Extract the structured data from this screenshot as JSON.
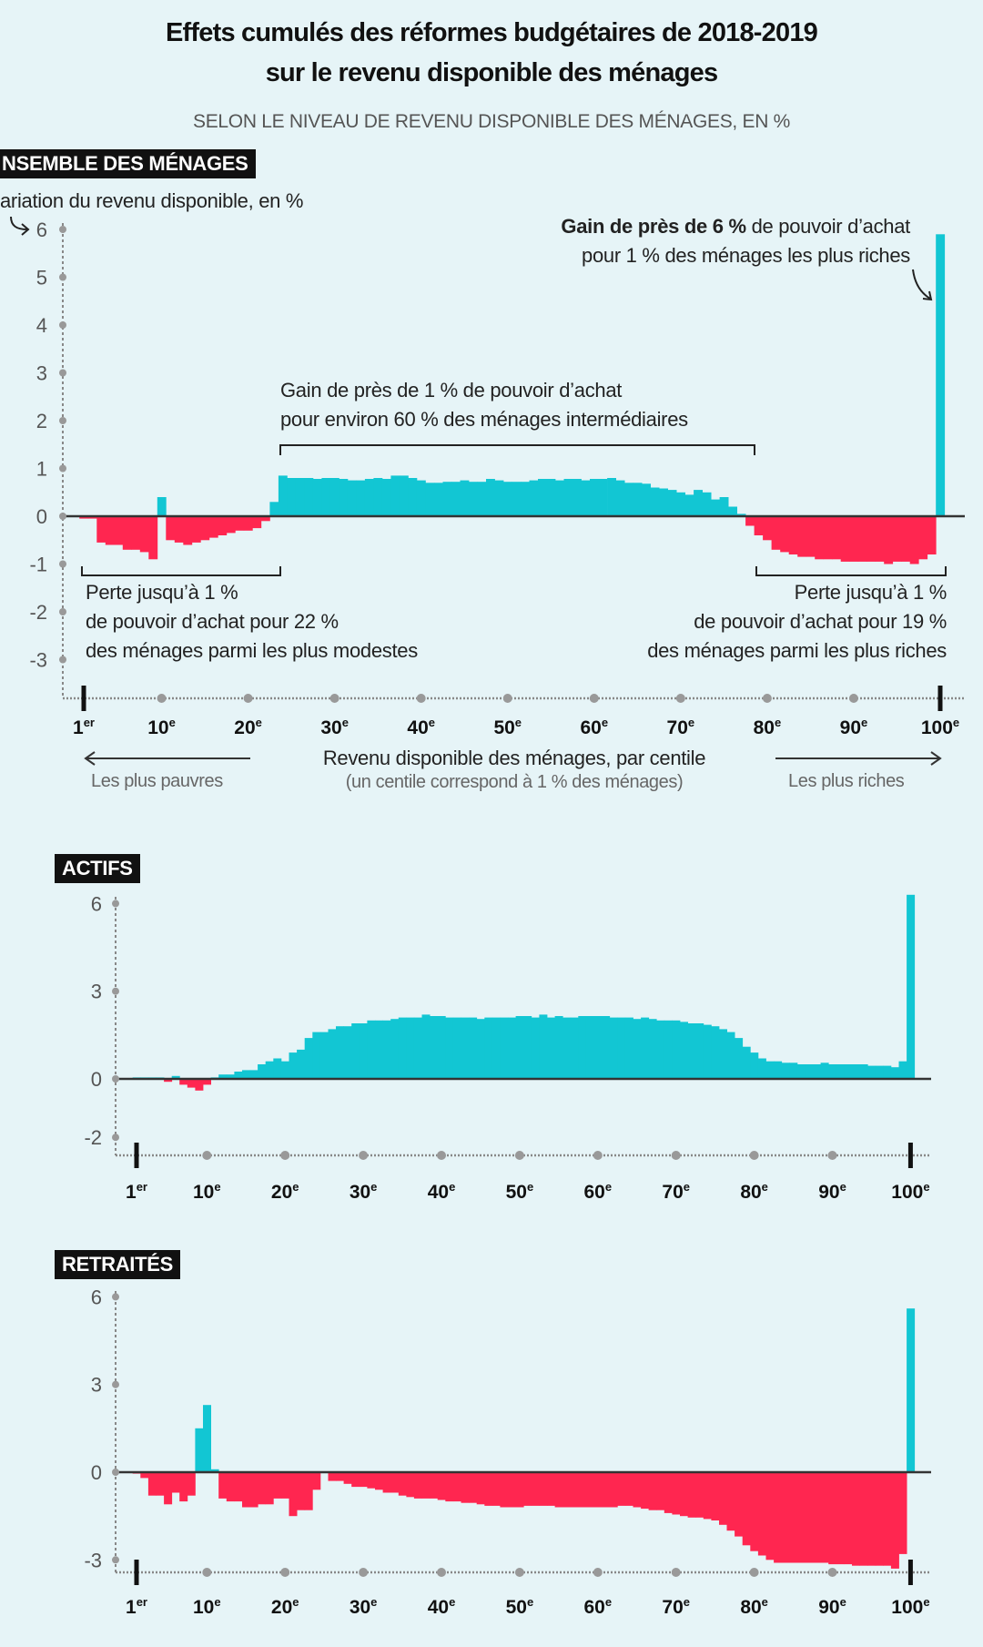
{
  "header": {
    "title_line1": "Effets cumulés des réformes budgétaires de 2018-2019",
    "title_line2": "sur le revenu disponible des ménages",
    "subtitle": "SELON LE NIVEAU DE REVENU DISPONIBLE DES MÉNAGES, EN %"
  },
  "colors": {
    "background": "#e6f4f7",
    "gain": "#12c6d3",
    "loss": "#ff2650",
    "axis": "#888888"
  },
  "annotations": {
    "top_gain_bold": "Gain de près de 6 %",
    "top_gain_rest": " de pouvoir d’achat",
    "top_gain_line2": "pour 1 % des ménages les plus riches",
    "mid_gain_line1": "Gain de près de 1 % de pouvoir d’achat",
    "mid_gain_line2": "pour environ 60 % des ménages intermédiaires",
    "left_loss_line1": "Perte jusqu’à 1 %",
    "left_loss_line2": "de pouvoir d’achat pour 22 %",
    "left_loss_line3": "des ménages parmi les plus modestes",
    "right_loss_line1": "Perte jusqu’à 1 %",
    "right_loss_line2": "de pouvoir d’achat pour 19 %",
    "right_loss_line3": "des ménages parmi les plus riches",
    "xlabel": "Revenu disponible des ménages, par centile",
    "xlabel_note": "(un centile correspond à 1 % des ménages)",
    "poorest": "Les plus pauvres",
    "richest": "Les plus riches"
  },
  "chart_data": [
    {
      "type": "bar",
      "title": "NSEMBLE DES MÉNAGES",
      "ylabel": "ariation du revenu disponible, en %",
      "xlabel": "Revenu disponible des ménages, par centile",
      "x_ticks": [
        {
          "n": "1",
          "s": "er",
          "c": 1
        },
        {
          "n": "10",
          "s": "e",
          "c": 10
        },
        {
          "n": "20",
          "s": "e",
          "c": 20
        },
        {
          "n": "30",
          "s": "e",
          "c": 30
        },
        {
          "n": "40",
          "s": "e",
          "c": 40
        },
        {
          "n": "50",
          "s": "e",
          "c": 50
        },
        {
          "n": "60",
          "s": "e",
          "c": 60
        },
        {
          "n": "70",
          "s": "e",
          "c": 70
        },
        {
          "n": "80",
          "s": "e",
          "c": 80
        },
        {
          "n": "90",
          "s": "e",
          "c": 90
        },
        {
          "n": "100",
          "s": "e",
          "c": 100
        }
      ],
      "y_ticks": [
        6,
        5,
        4,
        3,
        2,
        1,
        0,
        -1,
        -2,
        -3
      ],
      "ylim": [
        -3.8,
        6.3
      ],
      "x": "centiles 1 to 100",
      "values": [
        -0.05,
        -0.05,
        -0.55,
        -0.6,
        -0.6,
        -0.7,
        -0.7,
        -0.75,
        -0.9,
        0.4,
        -0.5,
        -0.55,
        -0.6,
        -0.55,
        -0.5,
        -0.45,
        -0.4,
        -0.35,
        -0.3,
        -0.3,
        -0.25,
        -0.1,
        0.3,
        0.85,
        0.8,
        0.8,
        0.8,
        0.78,
        0.8,
        0.8,
        0.78,
        0.75,
        0.75,
        0.78,
        0.8,
        0.78,
        0.85,
        0.85,
        0.8,
        0.75,
        0.7,
        0.7,
        0.72,
        0.72,
        0.75,
        0.72,
        0.72,
        0.78,
        0.75,
        0.72,
        0.72,
        0.72,
        0.75,
        0.78,
        0.78,
        0.75,
        0.78,
        0.78,
        0.75,
        0.78,
        0.78,
        0.8,
        0.75,
        0.7,
        0.7,
        0.68,
        0.6,
        0.58,
        0.55,
        0.5,
        0.45,
        0.55,
        0.5,
        0.35,
        0.4,
        0.2,
        0.05,
        -0.2,
        -0.4,
        -0.5,
        -0.7,
        -0.75,
        -0.8,
        -0.85,
        -0.85,
        -0.9,
        -0.9,
        -0.9,
        -0.95,
        -0.95,
        -0.95,
        -0.95,
        -0.95,
        -1.0,
        -0.95,
        -0.95,
        -1.0,
        -0.9,
        -0.8,
        5.9
      ]
    },
    {
      "type": "bar",
      "title": "ACTIFS",
      "x_ticks": [
        {
          "n": "1",
          "s": "er",
          "c": 1
        },
        {
          "n": "10",
          "s": "e",
          "c": 10
        },
        {
          "n": "20",
          "s": "e",
          "c": 20
        },
        {
          "n": "30",
          "s": "e",
          "c": 30
        },
        {
          "n": "40",
          "s": "e",
          "c": 40
        },
        {
          "n": "50",
          "s": "e",
          "c": 50
        },
        {
          "n": "60",
          "s": "e",
          "c": 60
        },
        {
          "n": "70",
          "s": "e",
          "c": 70
        },
        {
          "n": "80",
          "s": "e",
          "c": 80
        },
        {
          "n": "90",
          "s": "e",
          "c": 90
        },
        {
          "n": "100",
          "s": "e",
          "c": 100
        }
      ],
      "y_ticks": [
        6,
        3,
        0,
        -2
      ],
      "ylim": [
        -2.5,
        6.3
      ],
      "values": [
        0.05,
        0.05,
        0.05,
        0.05,
        -0.1,
        0.1,
        -0.2,
        -0.3,
        -0.4,
        -0.2,
        0.05,
        0.15,
        0.15,
        0.25,
        0.3,
        0.3,
        0.5,
        0.6,
        0.7,
        0.6,
        0.9,
        1.0,
        1.4,
        1.6,
        1.6,
        1.7,
        1.8,
        1.8,
        1.9,
        1.9,
        2.0,
        2.0,
        2.0,
        2.05,
        2.1,
        2.1,
        2.1,
        2.2,
        2.15,
        2.15,
        2.1,
        2.1,
        2.1,
        2.1,
        2.05,
        2.1,
        2.1,
        2.1,
        2.1,
        2.15,
        2.15,
        2.1,
        2.2,
        2.1,
        2.15,
        2.1,
        2.1,
        2.15,
        2.15,
        2.15,
        2.15,
        2.1,
        2.1,
        2.1,
        2.05,
        2.1,
        2.05,
        2.0,
        2.0,
        2.0,
        1.95,
        1.9,
        1.9,
        1.85,
        1.8,
        1.7,
        1.6,
        1.4,
        1.1,
        0.9,
        0.7,
        0.6,
        0.6,
        0.55,
        0.55,
        0.5,
        0.5,
        0.5,
        0.55,
        0.5,
        0.5,
        0.5,
        0.5,
        0.5,
        0.45,
        0.45,
        0.45,
        0.4,
        0.6,
        6.3
      ]
    },
    {
      "type": "bar",
      "title": "RETRAITÉS",
      "x_ticks": [
        {
          "n": "1",
          "s": "er",
          "c": 1
        },
        {
          "n": "10",
          "s": "e",
          "c": 10
        },
        {
          "n": "20",
          "s": "e",
          "c": 20
        },
        {
          "n": "30",
          "s": "e",
          "c": 30
        },
        {
          "n": "40",
          "s": "e",
          "c": 40
        },
        {
          "n": "50",
          "s": "e",
          "c": 50
        },
        {
          "n": "60",
          "s": "e",
          "c": 60
        },
        {
          "n": "70",
          "s": "e",
          "c": 70
        },
        {
          "n": "80",
          "s": "e",
          "c": 80
        },
        {
          "n": "90",
          "s": "e",
          "c": 90
        },
        {
          "n": "100",
          "s": "e",
          "c": 100
        }
      ],
      "y_ticks": [
        6,
        3,
        0,
        -3
      ],
      "ylim": [
        -3.5,
        6.3
      ],
      "values": [
        -0.05,
        -0.2,
        -0.8,
        -0.8,
        -1.1,
        -0.7,
        -1.0,
        -0.8,
        1.5,
        2.3,
        0.1,
        -0.9,
        -1.0,
        -1.0,
        -1.2,
        -1.2,
        -1.1,
        -1.1,
        -0.9,
        -0.9,
        -1.5,
        -1.3,
        -1.3,
        -0.6,
        0.0,
        -0.3,
        -0.3,
        -0.4,
        -0.5,
        -0.5,
        -0.55,
        -0.6,
        -0.7,
        -0.7,
        -0.8,
        -0.85,
        -0.9,
        -0.9,
        -0.9,
        -0.95,
        -1.0,
        -1.0,
        -1.05,
        -1.05,
        -1.1,
        -1.15,
        -1.15,
        -1.2,
        -1.2,
        -1.2,
        -1.15,
        -1.15,
        -1.15,
        -1.15,
        -1.2,
        -1.2,
        -1.2,
        -1.2,
        -1.2,
        -1.2,
        -1.2,
        -1.2,
        -1.15,
        -1.15,
        -1.2,
        -1.25,
        -1.3,
        -1.3,
        -1.4,
        -1.45,
        -1.5,
        -1.55,
        -1.55,
        -1.6,
        -1.65,
        -1.8,
        -2.0,
        -2.2,
        -2.5,
        -2.7,
        -2.85,
        -3.0,
        -3.1,
        -3.1,
        -3.1,
        -3.1,
        -3.1,
        -3.1,
        -3.1,
        -3.15,
        -3.15,
        -3.15,
        -3.2,
        -3.2,
        -3.2,
        -3.2,
        -3.2,
        -3.3,
        -2.8,
        5.6
      ]
    }
  ]
}
